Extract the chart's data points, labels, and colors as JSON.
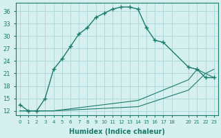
{
  "xlabel": "Humidex (Indice chaleur)",
  "ylabel": "",
  "background_color": "#d6f0f0",
  "grid_color": "#b0d8d8",
  "line_color": "#1a7a6a",
  "xlim": [
    -0.5,
    23.5
  ],
  "ylim": [
    11,
    38
  ],
  "yticks": [
    12,
    15,
    18,
    21,
    24,
    27,
    30,
    33,
    36
  ],
  "xtick_positions": [
    0,
    1,
    2,
    3,
    4,
    5,
    6,
    7,
    8,
    9,
    10,
    11,
    12,
    13,
    14,
    15,
    16,
    17,
    18,
    20,
    21,
    22,
    23
  ],
  "xtick_labels": [
    "0",
    "1",
    "2",
    "3",
    "4",
    "5",
    "6",
    "7",
    "8",
    "9",
    "10",
    "11",
    "12",
    "13",
    "14",
    "15",
    "16",
    "17",
    "18",
    "20",
    "21",
    "22",
    "23"
  ],
  "line1_x": [
    0,
    1,
    2,
    3,
    4,
    5,
    6,
    7,
    8,
    9,
    10,
    11,
    12,
    13,
    14,
    15,
    16,
    17,
    20,
    21,
    22,
    23
  ],
  "line1_y": [
    13.5,
    12.0,
    12.0,
    15.0,
    22.0,
    24.5,
    27.5,
    30.5,
    32.0,
    34.5,
    35.5,
    36.5,
    37.0,
    37.0,
    36.5,
    32.0,
    29.0,
    28.5,
    22.5,
    22.0,
    20.0,
    20.0
  ],
  "line2_x": [
    0,
    3,
    4,
    14,
    17,
    20,
    21,
    22,
    23
  ],
  "line2_y": [
    12.0,
    12.0,
    12.0,
    13.0,
    15.0,
    17.0,
    19.0,
    21.0,
    22.0
  ],
  "line3_x": [
    0,
    3,
    4,
    14,
    17,
    20,
    21,
    22,
    23
  ],
  "line3_y": [
    12.0,
    12.0,
    12.0,
    14.5,
    17.0,
    19.5,
    22.0,
    21.0,
    20.0
  ]
}
